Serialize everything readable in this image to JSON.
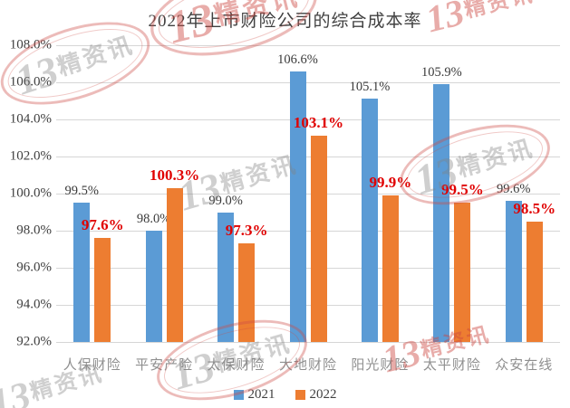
{
  "title": "2022年上市财险公司的综合成本率",
  "watermark": {
    "text_prefix": "13",
    "text_suffix": "精资讯"
  },
  "colors": {
    "series_2021": "#5B9BD5",
    "series_2022": "#ED7D31",
    "label_2021": "#3a3a3a",
    "label_2022": "#e00000",
    "gridline": "#d6d6d6"
  },
  "legend": [
    {
      "label": "2021",
      "color": "#5B9BD5"
    },
    {
      "label": "2022",
      "color": "#ED7D31"
    }
  ],
  "chart_data": {
    "type": "bar",
    "title": "2022年上市财险公司的综合成本率",
    "categories": [
      "人保财险",
      "平安产险",
      "太保财险",
      "大地财险",
      "阳光财险",
      "太平财险",
      "众安在线"
    ],
    "series": [
      {
        "name": "2021",
        "color": "#5B9BD5",
        "values": [
          99.5,
          98.0,
          99.0,
          106.6,
          105.1,
          105.9,
          99.6
        ]
      },
      {
        "name": "2022",
        "color": "#ED7D31",
        "values": [
          97.6,
          100.3,
          97.3,
          103.1,
          99.9,
          99.5,
          98.5
        ]
      }
    ],
    "value_labels": [
      [
        "99.5%",
        "98.0%",
        "99.0%",
        "106.6%",
        "105.1%",
        "105.9%",
        "99.6%"
      ],
      [
        "97.6%",
        "100.3%",
        "97.3%",
        "103.1%",
        "99.9%",
        "99.5%",
        "98.5%"
      ]
    ],
    "xlabel": "",
    "ylabel": "",
    "ylim": [
      92,
      108
    ],
    "ytick_step": 2,
    "ytick_labels": [
      "108.0%",
      "106.0%",
      "104.0%",
      "102.0%",
      "100.0%",
      "98.0%",
      "96.0%",
      "94.0%",
      "92.0%"
    ],
    "grid": true,
    "legend_position": "bottom"
  }
}
